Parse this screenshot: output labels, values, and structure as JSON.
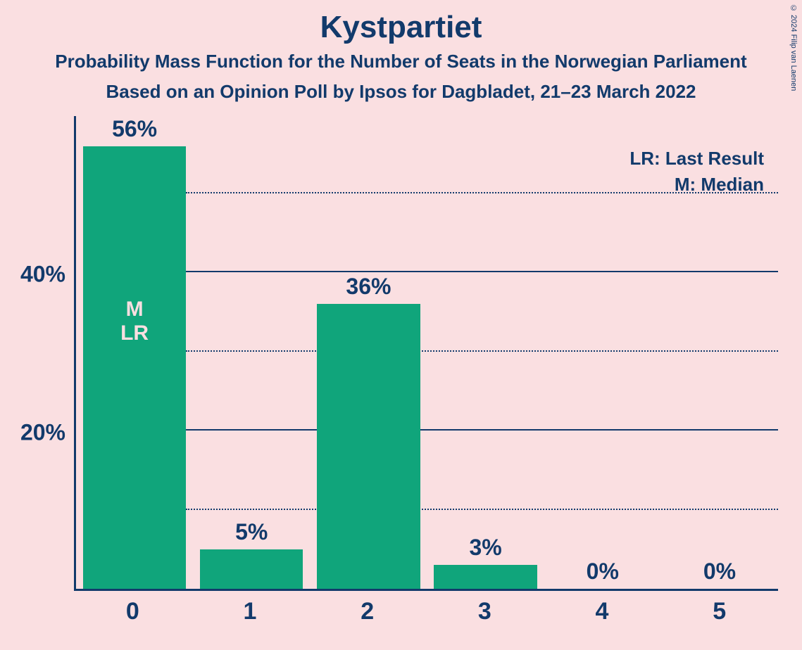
{
  "title": "Kystpartiet",
  "subtitle1": "Probability Mass Function for the Number of Seats in the Norwegian Parliament",
  "subtitle2": "Based on an Opinion Poll by Ipsos for Dagbladet, 21–23 March 2022",
  "copyright": "© 2024 Filip van Laenen",
  "legend": {
    "lr": "LR: Last Result",
    "m": "M: Median"
  },
  "chart": {
    "type": "bar",
    "background_color": "#fadfe1",
    "bar_color": "#10a57b",
    "axis_color": "#123a6b",
    "text_color": "#123a6b",
    "inbar_text_color": "#fadfe1",
    "ymax": 60,
    "y_major_ticks": [
      20,
      40
    ],
    "y_minor_ticks": [
      10,
      30,
      50
    ],
    "y_tick_labels": {
      "20": "20%",
      "40": "40%"
    },
    "categories": [
      "0",
      "1",
      "2",
      "3",
      "4",
      "5"
    ],
    "values": [
      56,
      5,
      36,
      3,
      0,
      0
    ],
    "value_labels": [
      "56%",
      "5%",
      "36%",
      "3%",
      "0%",
      "0%"
    ],
    "median_index": 0,
    "last_result_index": 0,
    "median_label": "M",
    "last_result_label": "LR",
    "title_fontsize": 44,
    "subtitle_fontsize": 26,
    "axis_label_fontsize": 32,
    "bar_label_fontsize": 32,
    "xcat_fontsize": 34,
    "legend_fontsize": 26,
    "inbar_fontsize": 30
  }
}
